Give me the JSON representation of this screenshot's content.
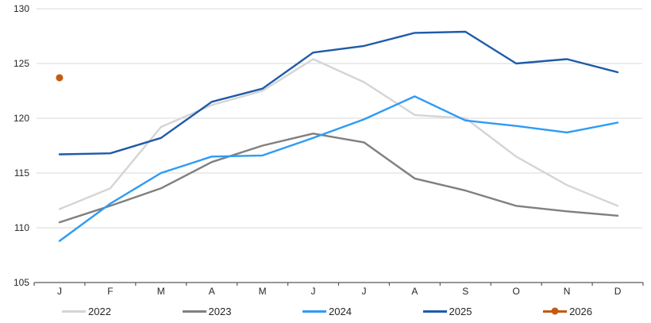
{
  "chart_data": {
    "type": "line",
    "title": "",
    "x_labels": [
      "J",
      "F",
      "M",
      "A",
      "M",
      "J",
      "J",
      "A",
      "S",
      "O",
      "N",
      "D"
    ],
    "y_ticks": [
      105,
      110,
      115,
      120,
      125,
      130
    ],
    "ylim": [
      105,
      130
    ],
    "grid": "horizontal-gridlines",
    "legend_position": "bottom",
    "series": [
      {
        "name": "2022",
        "color": "#D5D5D5",
        "style": "line",
        "values": [
          111.7,
          113.6,
          119.2,
          121.2,
          122.5,
          125.4,
          123.3,
          120.3,
          120.0,
          116.5,
          113.9,
          112.0
        ]
      },
      {
        "name": "2023",
        "color": "#808080",
        "style": "line",
        "values": [
          110.5,
          112.0,
          113.6,
          116.0,
          117.5,
          118.6,
          117.8,
          114.5,
          113.4,
          112.0,
          111.5,
          111.1
        ]
      },
      {
        "name": "2024",
        "color": "#2E9BF5",
        "style": "line",
        "values": [
          108.8,
          112.2,
          115.0,
          116.5,
          116.6,
          118.2,
          119.9,
          122.0,
          119.8,
          119.3,
          118.7,
          119.6
        ]
      },
      {
        "name": "2025",
        "color": "#1F5BA9",
        "style": "line",
        "values": [
          116.7,
          116.8,
          118.2,
          121.5,
          122.7,
          126.0,
          126.6,
          127.8,
          127.9,
          125.0,
          125.4,
          124.2
        ]
      },
      {
        "name": "2026",
        "color": "#C55A11",
        "style": "point",
        "values": [
          123.7,
          null,
          null,
          null,
          null,
          null,
          null,
          null,
          null,
          null,
          null,
          null
        ]
      }
    ]
  },
  "colors": {
    "grid": "#D9D9D9",
    "axis": "#595959",
    "text": "#262626",
    "background": "#FFFFFF"
  }
}
